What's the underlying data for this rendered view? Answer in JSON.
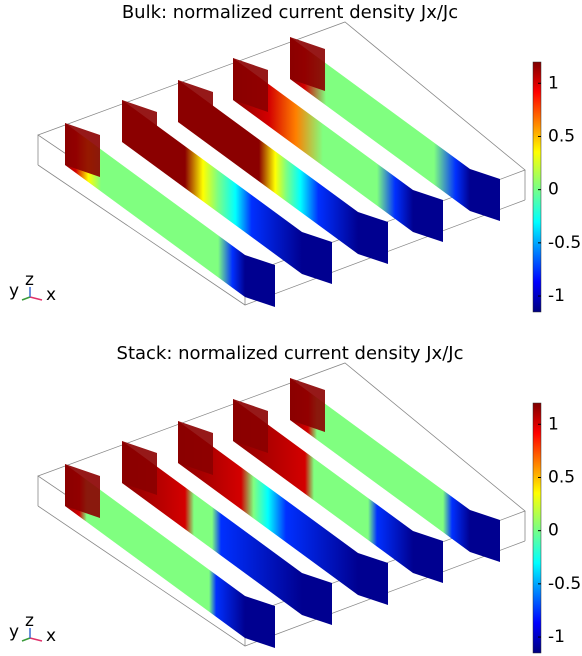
{
  "chart_data": [
    {
      "type": "slice",
      "title": "Bulk: normalized current density Jx/Jc",
      "clim": [
        -1.15,
        1.2
      ],
      "cticks": [
        -1,
        -0.5,
        0,
        0.5,
        1
      ],
      "axis_labels": {
        "y": "y",
        "z": "z",
        "x": "x"
      }
    },
    {
      "type": "slice",
      "title": "Stack: normalized current density Jx/Jc",
      "clim": [
        -1.15,
        1.2
      ],
      "cticks": [
        -1,
        -0.5,
        0,
        0.5,
        1
      ],
      "axis_labels": {
        "y": "y",
        "z": "z",
        "x": "x"
      }
    }
  ]
}
